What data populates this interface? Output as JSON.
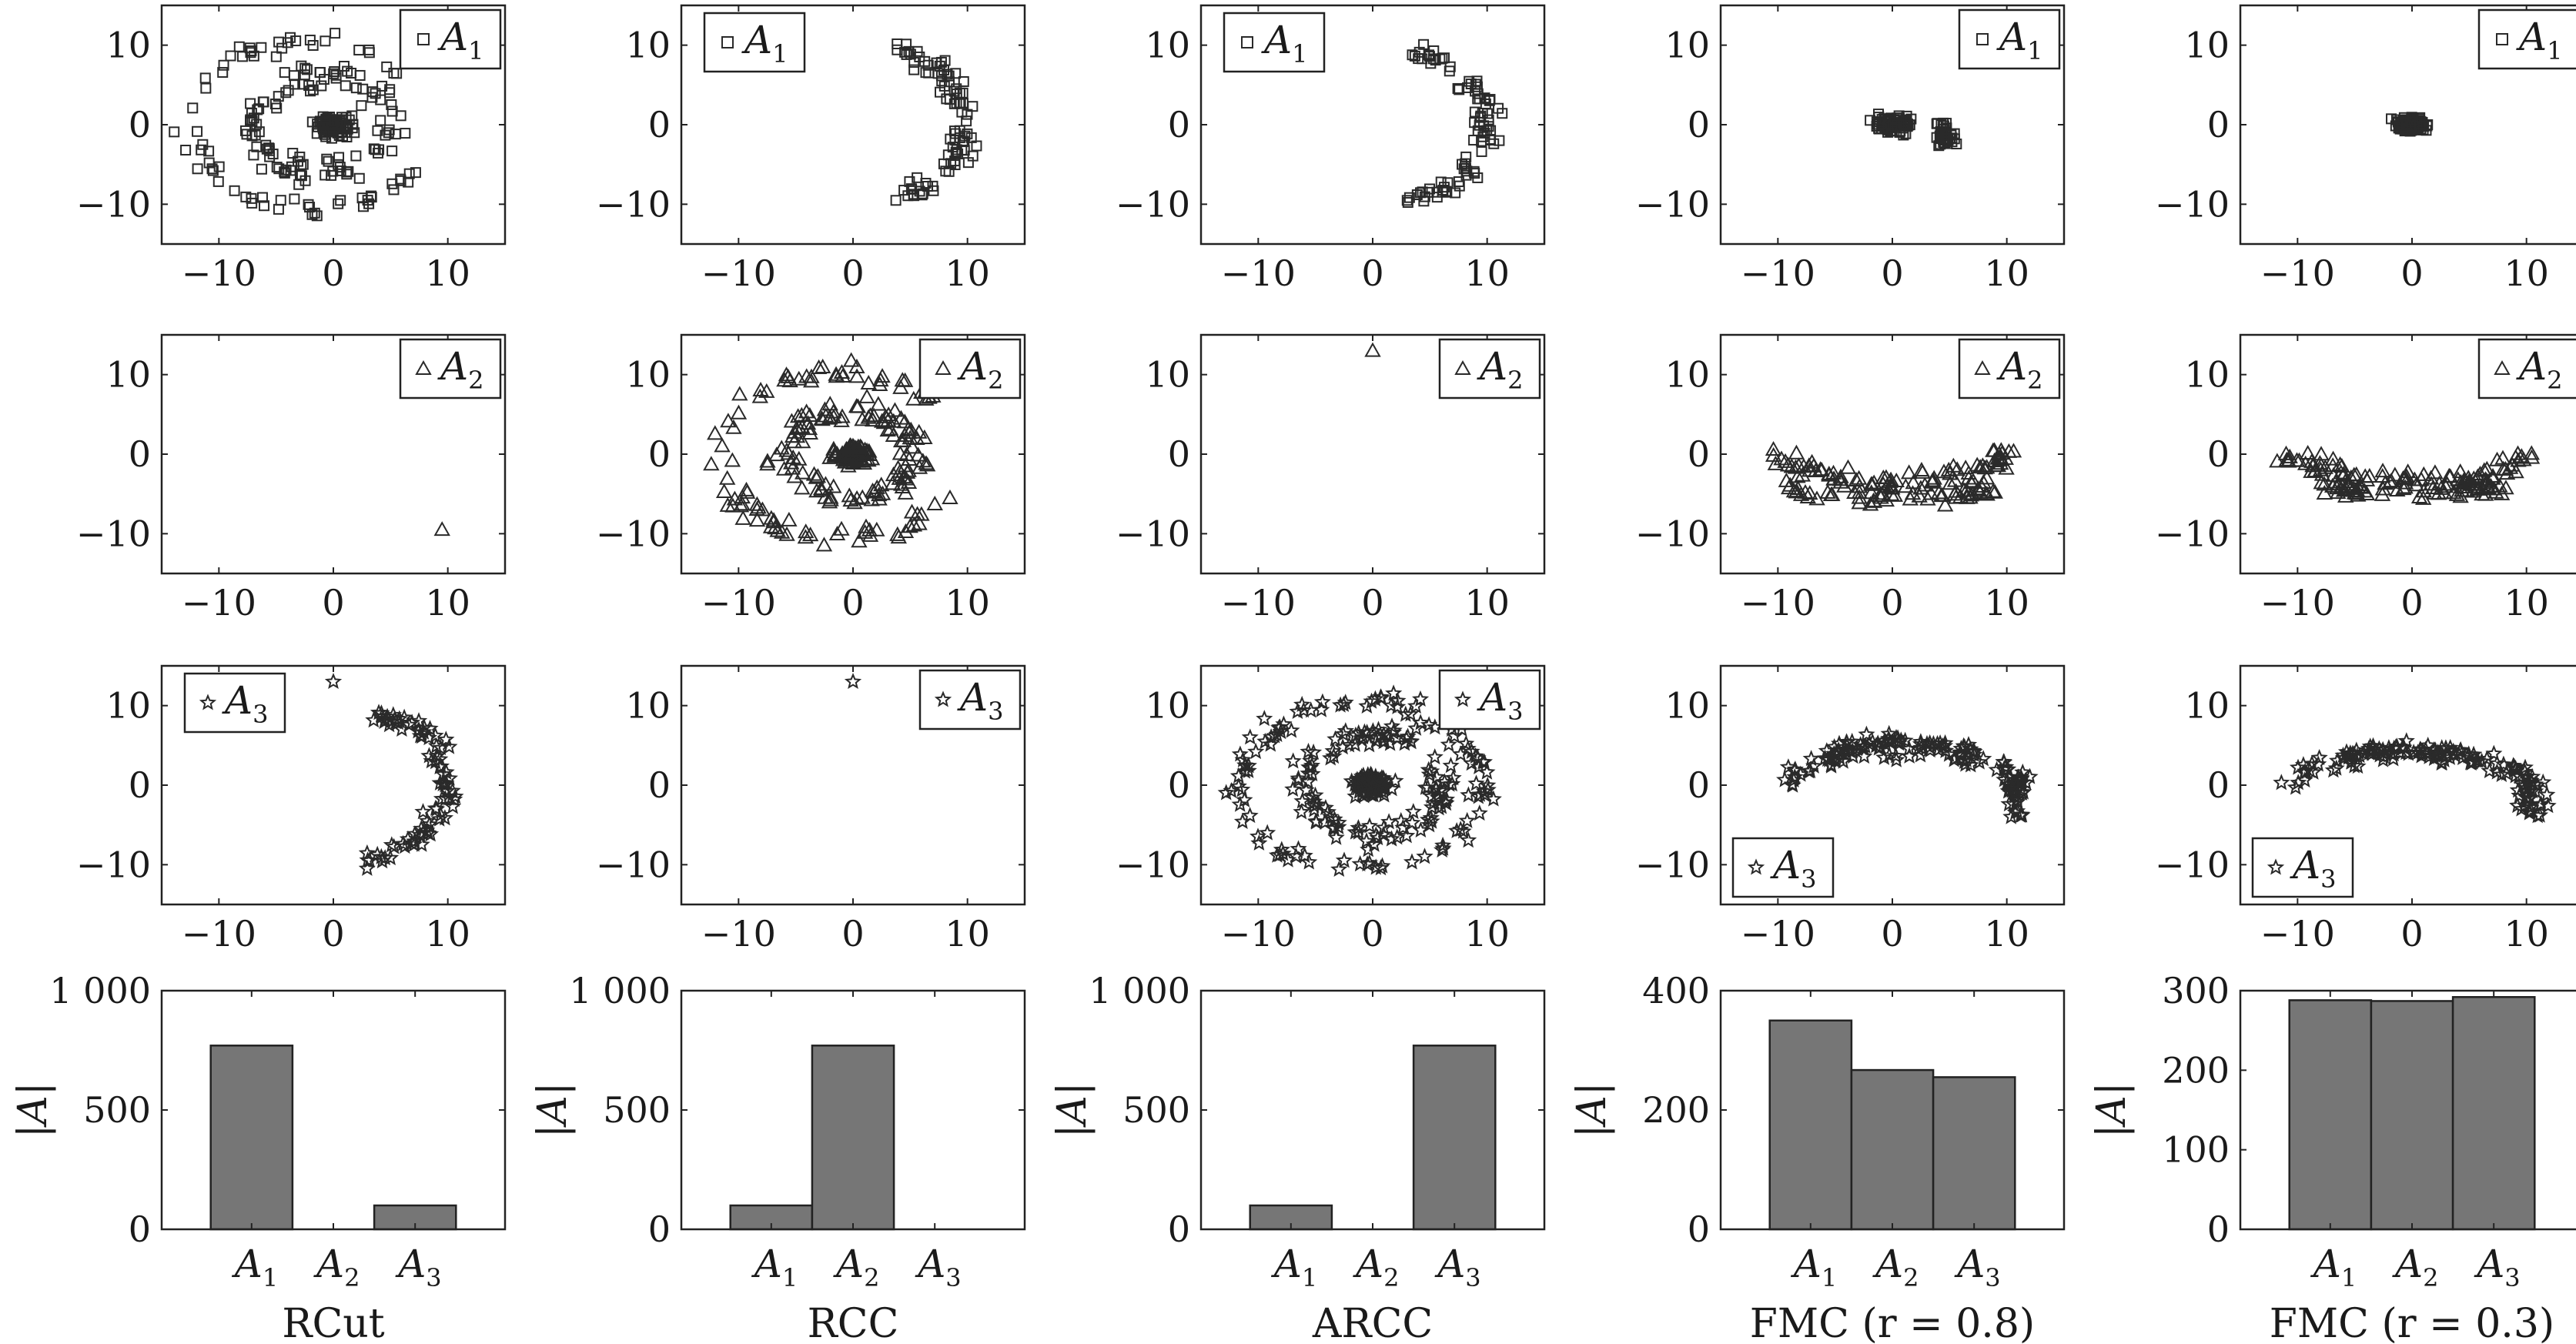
{
  "chart_data": {
    "type": "scatter",
    "layout": "4x5 grid: three scatter rows (one cluster each) plus one bar row, one column per method",
    "columns": [
      "RCut",
      "RCC",
      "ARCC",
      "FMC (r = 0.8)",
      "FMC (r = 0.3)"
    ],
    "scatter_axes": {
      "xlim": [
        -15,
        15
      ],
      "ylim": [
        -15,
        15
      ],
      "xticks": [
        -10,
        0,
        10
      ],
      "yticks": [
        -10,
        0,
        10
      ]
    },
    "scatter_rows": [
      {
        "cluster": "A",
        "subscript": "1",
        "marker": "square",
        "panels": [
          {
            "legend_position": "top-right",
            "content": [
              {
                "shape": "ring",
                "cx": -1,
                "cy": 0,
                "r": 6,
                "thick": 2,
                "n": 110
              },
              {
                "shape": "ring",
                "cx": -2,
                "cy": 0,
                "r": 10.5,
                "thick": 1.5,
                "n": 70,
                "arc": [
                  40,
                  330
                ]
              },
              {
                "shape": "blob",
                "cx": 0,
                "cy": 0,
                "rx": 2,
                "ry": 1.5,
                "n": 90
              }
            ]
          },
          {
            "legend_position": "top-left",
            "content": [
              {
                "shape": "ring",
                "cx": 0,
                "cy": 0,
                "r": 10,
                "thick": 1.5,
                "n": 90,
                "arc": [
                  -75,
                  70
                ]
              }
            ]
          },
          {
            "legend_position": "top-left",
            "content": [
              {
                "shape": "ring",
                "cx": 0,
                "cy": 0,
                "r": 10,
                "thick": 1.5,
                "n": 90,
                "arc": [
                  -75,
                  70
                ]
              }
            ]
          },
          {
            "legend_position": "top-right",
            "content": [
              {
                "shape": "blob",
                "cx": 0,
                "cy": 0,
                "rx": 2,
                "ry": 1.3,
                "n": 90
              },
              {
                "shape": "blob",
                "cx": 4.5,
                "cy": -1.5,
                "rx": 1.1,
                "ry": 1.9,
                "n": 40
              }
            ]
          },
          {
            "legend_position": "top-right",
            "content": [
              {
                "shape": "blob",
                "cx": 0,
                "cy": 0,
                "rx": 1.8,
                "ry": 1.1,
                "n": 100
              }
            ]
          }
        ]
      },
      {
        "cluster": "A",
        "subscript": "2",
        "marker": "triangle",
        "panels": [
          {
            "legend_position": "top-right",
            "content": [
              {
                "shape": "point",
                "x": 9.5,
                "y": -9.5
              }
            ]
          },
          {
            "legend_position": "top-right",
            "content": [
              {
                "shape": "ring",
                "cx": 0,
                "cy": 0,
                "r": 5.5,
                "thick": 2,
                "n": 120
              },
              {
                "shape": "ring",
                "cx": -1,
                "cy": 0,
                "r": 10.5,
                "thick": 1.5,
                "n": 90,
                "arc": [
                  40,
                  330
                ]
              },
              {
                "shape": "blob",
                "cx": 0,
                "cy": 0,
                "rx": 2,
                "ry": 1.5,
                "n": 90
              }
            ]
          },
          {
            "legend_position": "top-right",
            "content": [
              {
                "shape": "point",
                "x": 0,
                "y": 13
              }
            ]
          },
          {
            "legend_position": "top-right",
            "content": [
              {
                "shape": "band",
                "cx": 0,
                "cy": -3.5,
                "rx": 9.5,
                "ry": 4.5,
                "thick": 1.2,
                "n": 60
              },
              {
                "shape": "band",
                "cx": 0,
                "cy": 2,
                "rx": 10.5,
                "ry": 12,
                "thick": 1.6,
                "n": 90
              }
            ]
          },
          {
            "legend_position": "top-right",
            "content": [
              {
                "shape": "band",
                "cx": 0,
                "cy": -3,
                "rx": 8,
                "ry": 4.5,
                "thick": 1.2,
                "n": 60
              },
              {
                "shape": "band",
                "cx": 0,
                "cy": 2,
                "rx": 11,
                "ry": 12,
                "thick": 1.6,
                "n": 100
              }
            ]
          }
        ]
      },
      {
        "cluster": "A",
        "subscript": "3",
        "marker": "star",
        "panels": [
          {
            "legend_position": "top-left",
            "content": [
              {
                "shape": "ring",
                "cx": 0,
                "cy": 0,
                "r": 10,
                "thick": 1.5,
                "n": 90,
                "arc": [
                  -75,
                  70
                ]
              },
              {
                "shape": "point",
                "x": 0,
                "y": 13
              }
            ]
          },
          {
            "legend_position": "top-right",
            "content": [
              {
                "shape": "point",
                "x": 0,
                "y": 13
              }
            ]
          },
          {
            "legend_position": "top-right",
            "content": [
              {
                "shape": "ring",
                "cx": 0,
                "cy": 0,
                "r": 6,
                "thick": 2,
                "n": 120
              },
              {
                "shape": "ring",
                "cx": -1,
                "cy": 0,
                "r": 10.5,
                "thick": 1.5,
                "n": 110
              },
              {
                "shape": "blob",
                "cx": 0,
                "cy": 0,
                "rx": 2,
                "ry": 1.5,
                "n": 90
              }
            ]
          },
          {
            "legend_position": "bottom-left",
            "content": [
              {
                "shape": "arch",
                "cx": 1,
                "cy": 4,
                "rx": 6,
                "ry": 3,
                "thick": 1.2,
                "n": 60
              },
              {
                "shape": "arch",
                "cx": 1,
                "cy": -1,
                "rx": 10.5,
                "ry": 12,
                "thick": 1.5,
                "n": 100
              }
            ]
          },
          {
            "legend_position": "bottom-left",
            "content": [
              {
                "shape": "arch",
                "cx": 0,
                "cy": 3,
                "rx": 6,
                "ry": 3,
                "thick": 1.2,
                "n": 60
              },
              {
                "shape": "arch",
                "cx": 0,
                "cy": -1,
                "rx": 11,
                "ry": 11,
                "thick": 1.5,
                "n": 100
              }
            ]
          }
        ]
      }
    ],
    "bar_row": {
      "ylabel": "|A|",
      "categories": [
        {
          "base": "A",
          "sub": "1"
        },
        {
          "base": "A",
          "sub": "2"
        },
        {
          "base": "A",
          "sub": "3"
        }
      ],
      "panels": [
        {
          "method": "RCut",
          "values": [
            770,
            0,
            100
          ],
          "ylim": [
            0,
            1000
          ],
          "yticks": [
            0,
            500,
            1000
          ],
          "ytick_labels": [
            "0",
            "500",
            "1 000"
          ]
        },
        {
          "method": "RCC",
          "values": [
            100,
            770,
            0
          ],
          "ylim": [
            0,
            1000
          ],
          "yticks": [
            0,
            500,
            1000
          ],
          "ytick_labels": [
            "0",
            "500",
            "1 000"
          ]
        },
        {
          "method": "ARCC",
          "values": [
            100,
            0,
            770
          ],
          "ylim": [
            0,
            1000
          ],
          "yticks": [
            0,
            500,
            1000
          ],
          "ytick_labels": [
            "0",
            "500",
            "1 000"
          ]
        },
        {
          "method": "FMC (r = 0.8)",
          "values": [
            350,
            267,
            255
          ],
          "ylim": [
            0,
            400
          ],
          "yticks": [
            0,
            200,
            400
          ],
          "ytick_labels": [
            "0",
            "200",
            "400"
          ]
        },
        {
          "method": "FMC (r = 0.3)",
          "values": [
            288,
            287,
            292
          ],
          "ylim": [
            0,
            300
          ],
          "yticks": [
            0,
            100,
            200,
            300
          ],
          "ytick_labels": [
            "0",
            "100",
            "200",
            "300"
          ]
        }
      ]
    }
  }
}
